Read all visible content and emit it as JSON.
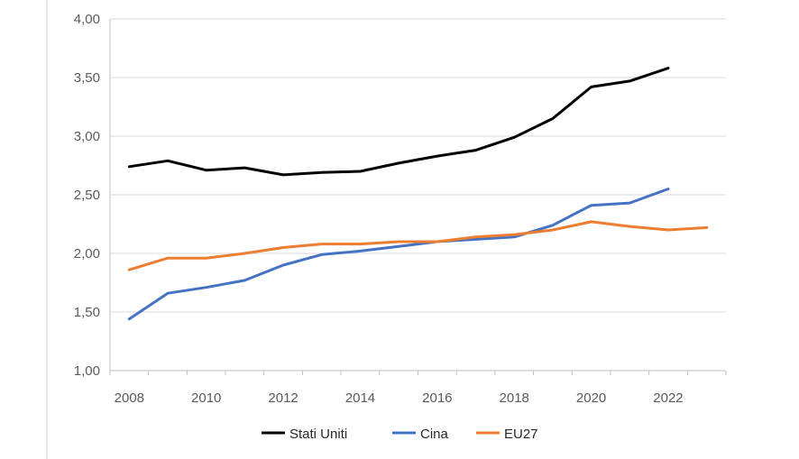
{
  "chart_data": {
    "type": "line",
    "title": "",
    "xlabel": "",
    "ylabel": "",
    "ylim": [
      1.0,
      4.0
    ],
    "yticks": [
      "1,00",
      "1,50",
      "2,00",
      "2,50",
      "3,00",
      "3,50",
      "4,00"
    ],
    "xticks": [
      "2008",
      "2010",
      "2012",
      "2014",
      "2016",
      "2018",
      "2020",
      "2022"
    ],
    "grid": "horizontal",
    "legend": "bottom",
    "x": [
      2008,
      2009,
      2010,
      2011,
      2012,
      2013,
      2014,
      2015,
      2016,
      2017,
      2018,
      2019,
      2020,
      2021,
      2022,
      2023
    ],
    "series": [
      {
        "name": "Stati Uniti",
        "color": "#000000",
        "values": [
          2.74,
          2.79,
          2.71,
          2.73,
          2.67,
          2.69,
          2.7,
          2.77,
          2.83,
          2.88,
          2.99,
          3.15,
          3.42,
          3.47,
          3.58,
          null
        ]
      },
      {
        "name": "Cina",
        "color": "#4472c4",
        "values": [
          1.44,
          1.66,
          1.71,
          1.77,
          1.9,
          1.99,
          2.02,
          2.06,
          2.1,
          2.12,
          2.14,
          2.24,
          2.41,
          2.43,
          2.55,
          null
        ]
      },
      {
        "name": "EU27",
        "color": "#ed7d31",
        "values": [
          1.86,
          1.96,
          1.96,
          2.0,
          2.05,
          2.08,
          2.08,
          2.1,
          2.1,
          2.14,
          2.16,
          2.2,
          2.27,
          2.23,
          2.2,
          2.22
        ]
      }
    ]
  }
}
